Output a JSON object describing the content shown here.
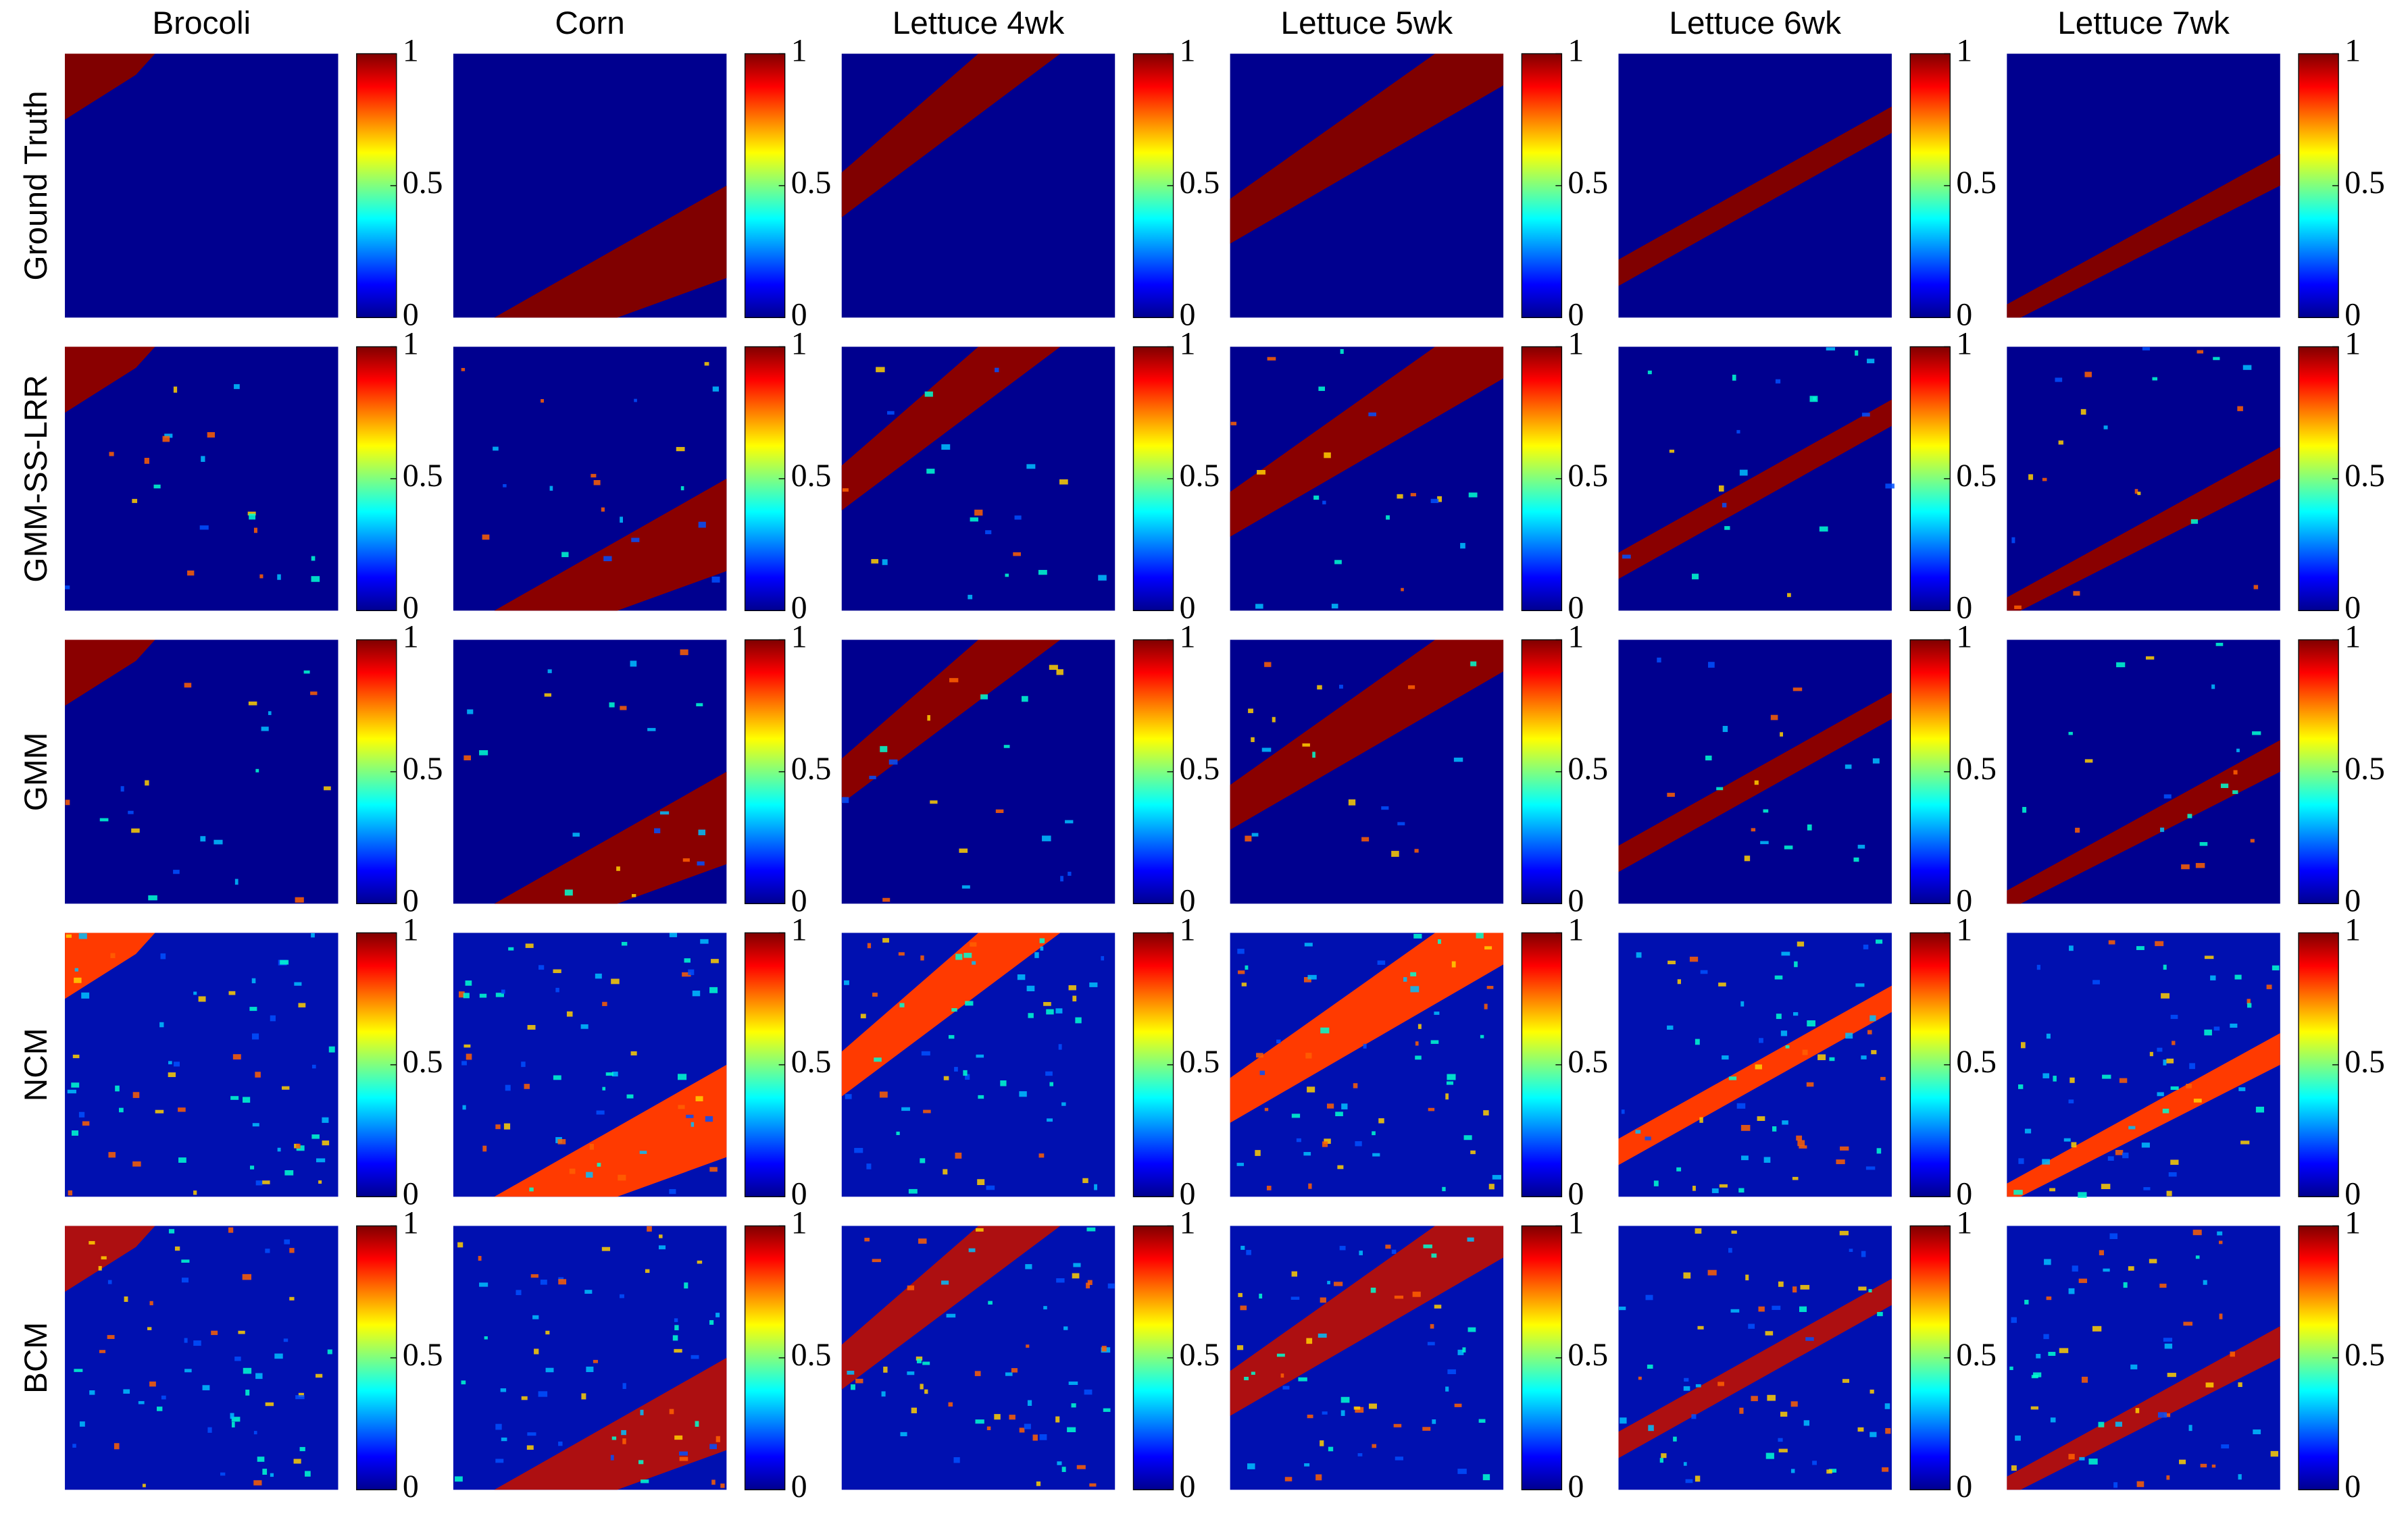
{
  "columns": [
    "Brocoli",
    "Corn",
    "Lettuce 4wk",
    "Lettuce 5wk",
    "Lettuce 6wk",
    "Lettuce 7wk"
  ],
  "rows": [
    "Ground Truth",
    "GMM-SS-LRR",
    "GMM",
    "NCM",
    "BCM"
  ],
  "colorbar": {
    "ticks": [
      0,
      0.5,
      1
    ]
  }
}
